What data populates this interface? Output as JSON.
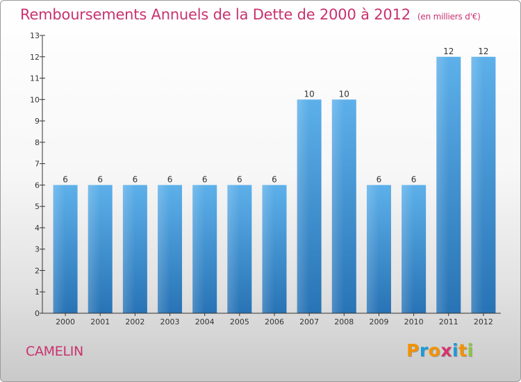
{
  "header": {
    "title": "Remboursements Annuels de la Dette de 2000 à 2012",
    "unit": "(en milliers d'€)"
  },
  "footer": {
    "commune": "CAMELIN",
    "logo_letters": [
      "P",
      "r",
      "o",
      "x",
      "i",
      "t",
      "i"
    ],
    "logo_colors": [
      "#f39200",
      "#1a9bd7",
      "#f39200",
      "#d6336c",
      "#1a9bd7",
      "#f39200",
      "#8dc63f"
    ]
  },
  "colors": {
    "bar": "#3a93d8",
    "bar_light": "#5aaee8",
    "bar_dark": "#2874b8",
    "axis": "#333333",
    "text": "#333333",
    "accent": "#c8326e"
  },
  "chart_data": {
    "type": "bar",
    "title": "Remboursements Annuels de la Dette de 2000 à 2012",
    "xlabel": "",
    "ylabel": "",
    "categories": [
      "2000",
      "2001",
      "2002",
      "2003",
      "2004",
      "2005",
      "2006",
      "2007",
      "2008",
      "2009",
      "2010",
      "2011",
      "2012"
    ],
    "values": [
      6,
      6,
      6,
      6,
      6,
      6,
      6,
      10,
      10,
      6,
      6,
      12,
      12
    ],
    "ylim": [
      0,
      13
    ],
    "yticks": [
      0,
      1,
      2,
      3,
      4,
      5,
      6,
      7,
      8,
      9,
      10,
      11,
      12,
      13
    ],
    "grid": false,
    "data_labels": true
  }
}
